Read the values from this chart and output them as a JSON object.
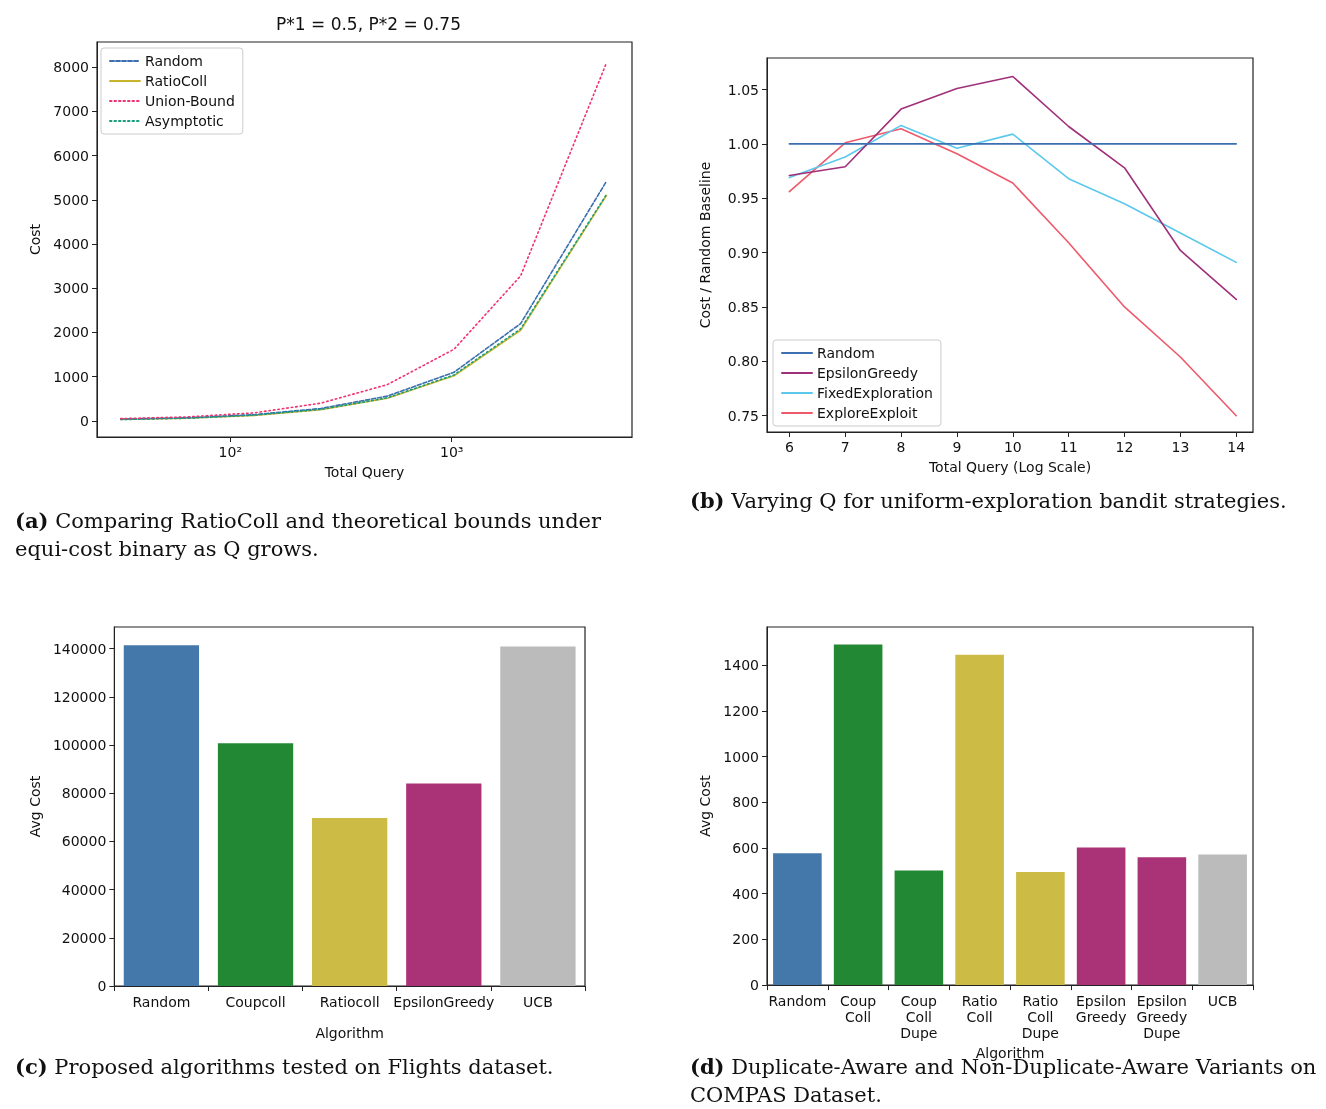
{
  "chart_data": [
    {
      "type": "line",
      "title": "P*1 = 0.5, P*2 = 0.75",
      "xlabel": "Total Query",
      "ylabel": "Cost",
      "log": "x",
      "x": [
        32,
        64,
        128,
        256,
        512,
        1024,
        2048,
        5000
      ],
      "xlim": [
        25,
        6520
      ],
      "xticks": [
        {
          "value": 100,
          "label": "10²"
        },
        {
          "value": 1000,
          "label": "10³"
        }
      ],
      "ylim": [
        -365,
        8570
      ],
      "yticks": [
        0,
        1000,
        2000,
        3000,
        4000,
        5000,
        6000,
        7000,
        8000
      ],
      "legend": "top left",
      "series": [
        {
          "name": "Random",
          "color": "#3b6fb0",
          "line_style": "dashed",
          "values": [
            40,
            70,
            140,
            280,
            560,
            1100,
            2200,
            5420
          ]
        },
        {
          "name": "RatioColl",
          "color": "#c8b42c",
          "line_style": "solid",
          "values": [
            30,
            60,
            120,
            250,
            510,
            1020,
            2050,
            5100
          ]
        },
        {
          "name": "Union-Bound",
          "color": "#f0326e",
          "line_style": "dotted",
          "values": [
            50,
            90,
            180,
            400,
            820,
            1620,
            3280,
            8100
          ]
        },
        {
          "name": "Asymptotic",
          "color": "#179c7d",
          "line_style": "dotted",
          "values": [
            30,
            60,
            130,
            260,
            520,
            1040,
            2080,
            5120
          ]
        }
      ],
      "annotations": [
        "(a) Comparing RatioColl and theoretical bounds under equi-cost binary as Q grows."
      ]
    },
    {
      "type": "line",
      "xlabel": "Total Query (Log Scale)",
      "ylabel": "Cost / Random Baseline",
      "x": [
        6,
        7,
        8,
        9,
        10,
        11,
        12,
        13,
        14
      ],
      "xlim": [
        5.6,
        14.3
      ],
      "xticks": [
        6,
        7,
        8,
        9,
        10,
        11,
        12,
        13,
        14
      ],
      "ylim": [
        0.735,
        1.079
      ],
      "yticks": [
        0.75,
        {
          "value": 0.8,
          "label": "0.80"
        },
        0.85,
        {
          "value": 0.9,
          "label": "0.90"
        },
        0.95,
        {
          "value": 1,
          "label": "1.00"
        },
        1.05
      ],
      "legend": "bottom left",
      "series": [
        {
          "name": "Random",
          "color": "#3b6fb0",
          "values": [
            1,
            1,
            1,
            1,
            1,
            1,
            1,
            1,
            1
          ]
        },
        {
          "name": "EpsilonGreedy",
          "color": "#a0307a",
          "values": [
            0.971,
            0.979,
            1.032,
            1.051,
            1.062,
            1.016,
            0.978,
            0.902,
            0.857
          ]
        },
        {
          "name": "FixedExploration",
          "color": "#5bc8ec",
          "values": [
            0.969,
            0.988,
            1.017,
            0.996,
            1.009,
            0.968,
            0.945,
            0.918,
            0.891
          ]
        },
        {
          "name": "ExploreExploit",
          "color": "#ee5a6a",
          "values": [
            0.956,
            1.001,
            1.014,
            0.991,
            0.964,
            0.909,
            0.85,
            0.804,
            0.75
          ]
        }
      ],
      "annotations": [
        "(b) Varying Q for uniform-exploration bandit strategies."
      ]
    },
    {
      "type": "bar",
      "xlabel": "Algorithm",
      "ylabel": "Avg Cost",
      "categories": [
        "Random",
        "Coupcoll",
        "Ratiocoll",
        "EpsilonGreedy",
        "UCB"
      ],
      "values": [
        141400,
        100800,
        69700,
        84000,
        140900
      ],
      "colors": [
        "#4477aa",
        "#228833",
        "#ccbb44",
        "#aa3377",
        "#bbbbbb"
      ],
      "ylim": [
        0,
        149000
      ],
      "yticks": [
        0,
        20000,
        40000,
        60000,
        80000,
        100000,
        120000,
        140000
      ],
      "annotations": [
        "(c) Proposed algorithms tested on Flights dataset."
      ]
    },
    {
      "type": "bar",
      "xlabel": "Algorithm",
      "ylabel": "Avg Cost",
      "categories": [
        "Random",
        "Coup\nColl",
        "Coup\nColl\nDupe",
        "Ratio\nColl",
        "Ratio\nColl\nDupe",
        "Epsilon\nGreedy",
        "Epsilon\nGreedy\nDupe",
        "UCB"
      ],
      "values": [
        577,
        1490,
        501,
        1446,
        495,
        602,
        559,
        572
      ],
      "colors": [
        "#4477aa",
        "#228833",
        "#228833",
        "#ccbb44",
        "#ccbb44",
        "#aa3377",
        "#aa3377",
        "#bbbbbb"
      ],
      "ylim": [
        0,
        1567
      ],
      "yticks": [
        0,
        200,
        400,
        600,
        800,
        1000,
        1200,
        1400
      ],
      "annotations": [
        "(d) Duplicate-Aware and Non-Duplicate-Aware Variants on COMPAS Dataset."
      ]
    }
  ]
}
